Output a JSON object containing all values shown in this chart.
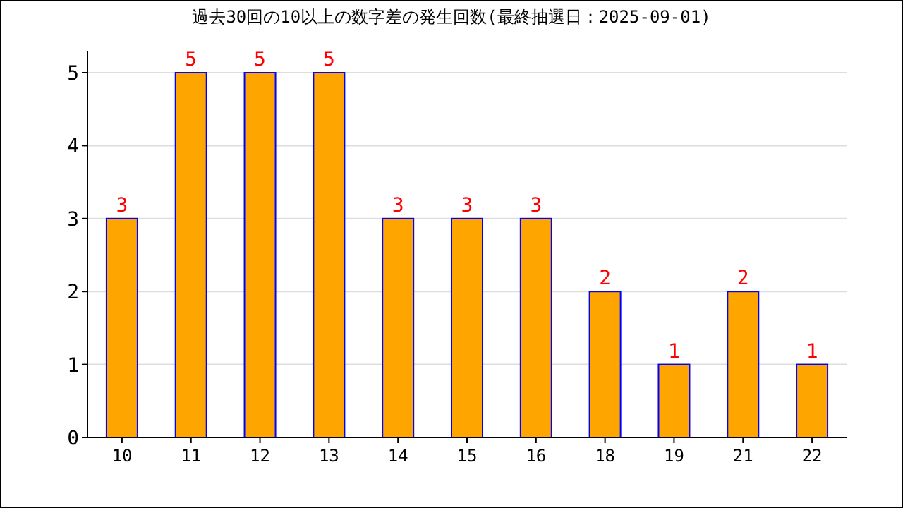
{
  "chart_data": {
    "type": "bar",
    "title": "過去30回の10以上の数字差の発生回数(最終抽選日：2025-09-01)",
    "categories": [
      "10",
      "11",
      "12",
      "13",
      "14",
      "15",
      "16",
      "18",
      "19",
      "21",
      "22"
    ],
    "values": [
      3,
      5,
      5,
      5,
      3,
      3,
      3,
      2,
      1,
      2,
      1
    ],
    "color": "#ffa500",
    "ylim": [
      0,
      5.3
    ],
    "yticks": [
      0,
      1,
      2,
      3,
      4,
      5
    ],
    "grid": "y",
    "data_labels": true
  }
}
